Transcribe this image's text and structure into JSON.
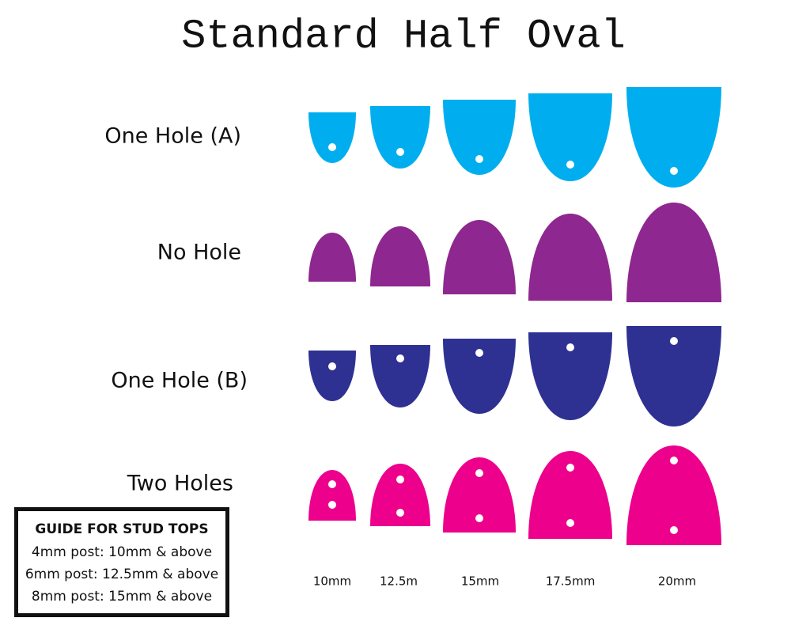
{
  "title": "Standard Half Oval",
  "rows": [
    {
      "label": "One Hole (A)"
    },
    {
      "label": "No Hole"
    },
    {
      "label": "One Hole (B)"
    },
    {
      "label": "Two Holes"
    }
  ],
  "sizes": [
    "10mm",
    "12.5m",
    "15mm",
    "17.5mm",
    "20mm"
  ],
  "guide": {
    "heading": "GUIDE FOR STUD TOPS",
    "lines": [
      "4mm post: 10mm & above",
      "6mm post: 12.5mm & above",
      "8mm post: 15mm & above"
    ]
  }
}
